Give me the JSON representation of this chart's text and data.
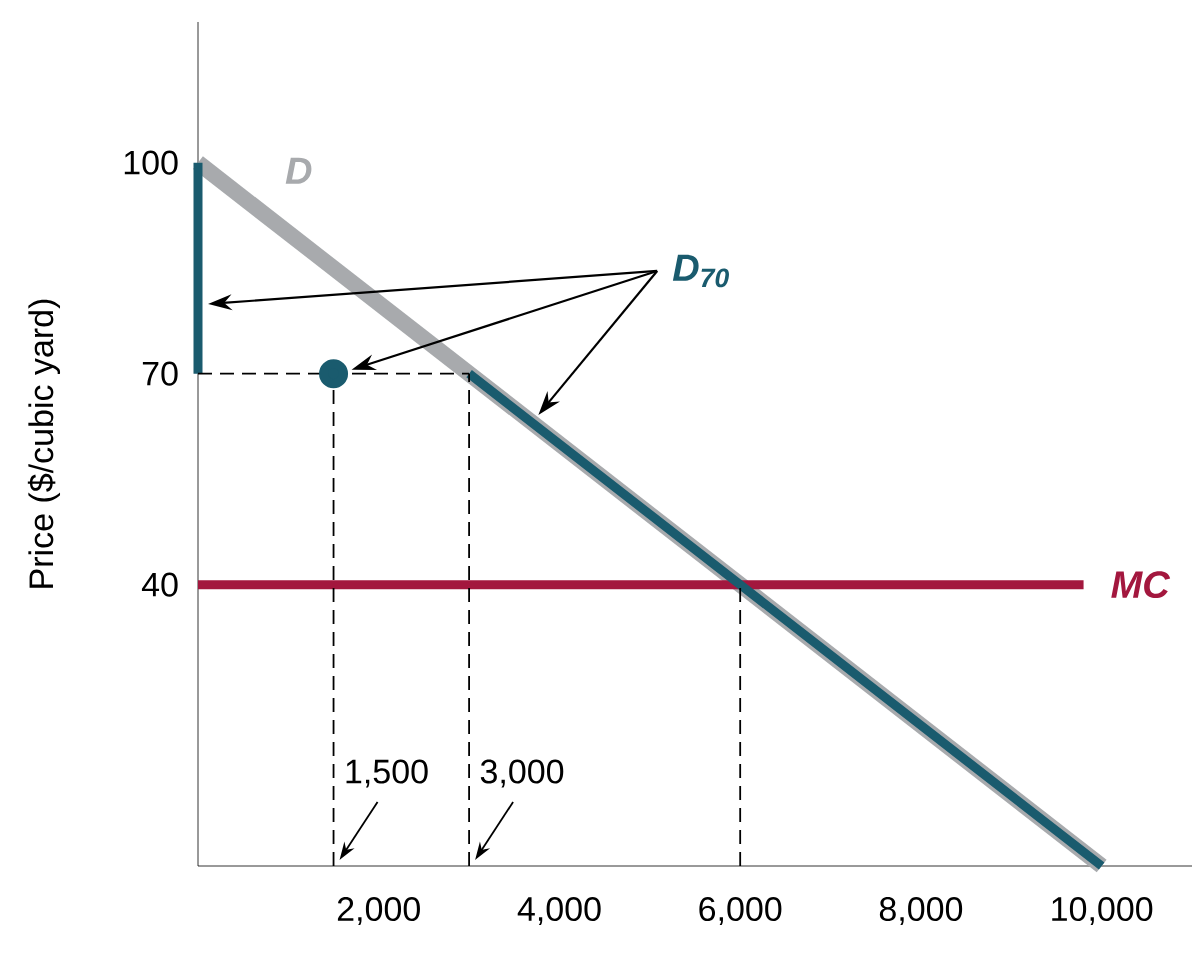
{
  "chart_data": {
    "type": "line",
    "ylabel": "Price ($/cubic yard)",
    "xlim": [
      0,
      11000
    ],
    "ylim": [
      0,
      120
    ],
    "xticks": [
      {
        "value": 2000,
        "label": "2,000"
      },
      {
        "value": 4000,
        "label": "4,000"
      },
      {
        "value": 6000,
        "label": "6,000"
      },
      {
        "value": 8000,
        "label": "8,000"
      },
      {
        "value": 10000,
        "label": "10,000"
      }
    ],
    "yticks": [
      40,
      70,
      100
    ],
    "series": [
      {
        "name": "D",
        "color": "#a8aaad",
        "x": [
          0,
          10000
        ],
        "values": [
          100,
          0
        ],
        "line_style": "solid",
        "marker": "none"
      },
      {
        "name": "MC",
        "color": "#a3173e",
        "x": [
          0,
          9800
        ],
        "values": [
          40,
          40
        ],
        "line_style": "solid",
        "marker": "none"
      },
      {
        "name": "D$_{70}$",
        "color": "#1a5b6e",
        "x": [
          0,
          0,
          null,
          3000,
          10000
        ],
        "values": [
          100,
          70,
          null,
          70,
          0
        ],
        "line_style": "solid",
        "marker": "none"
      },
      {
        "type": "scatter",
        "color": "#1a5b6e",
        "x": [
          1500
        ],
        "values": [
          70
        ],
        "marker": "circle"
      },
      {
        "color": "#000000",
        "x": [
          0,
          3000,
          null,
          1500,
          1500,
          null,
          3000,
          3000,
          null,
          6000,
          6000
        ],
        "values": [
          70,
          70,
          null,
          0,
          70,
          null,
          0,
          70,
          null,
          0,
          40
        ],
        "line_style": "dashed",
        "marker": "none"
      }
    ],
    "annotations": [
      {
        "text": "1,500",
        "x": 1500,
        "y": 0
      },
      {
        "text": "3,000",
        "x": 3000,
        "y": 0
      }
    ]
  }
}
